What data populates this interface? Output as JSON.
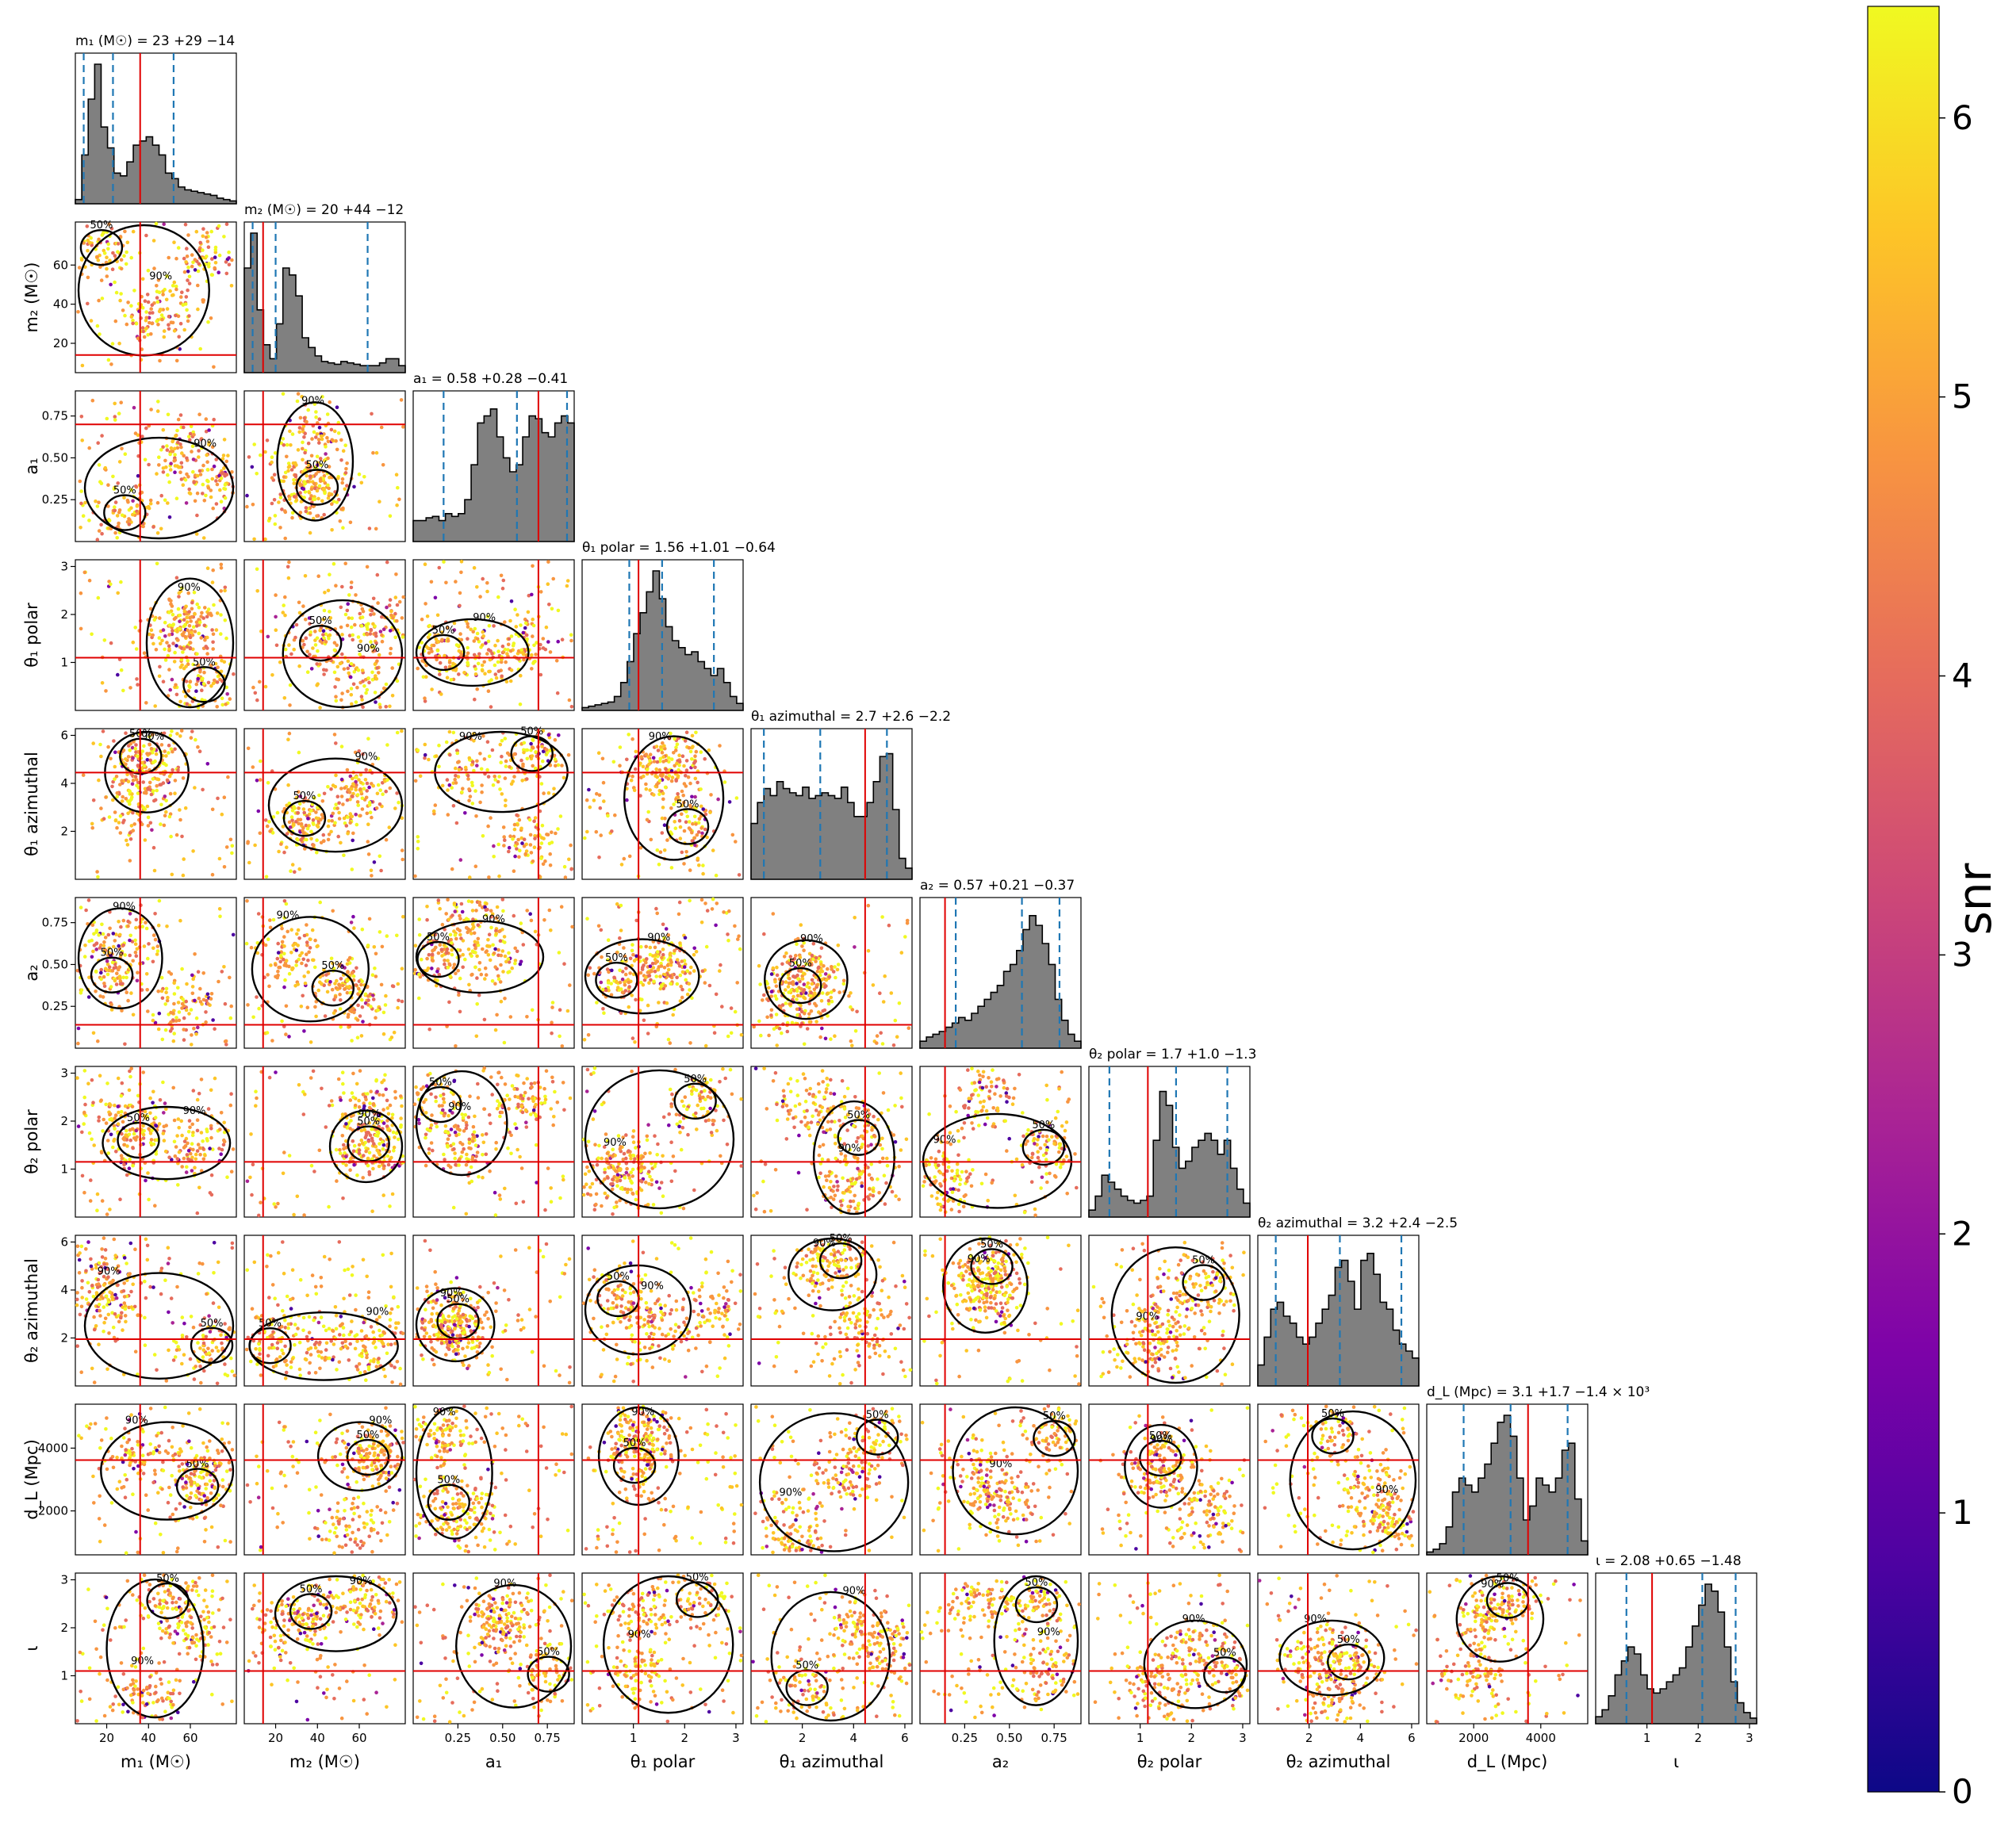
{
  "chart_data": {
    "type": "corner",
    "parameters": [
      {
        "key": "m1",
        "axis_label": "m₁ (M☉)",
        "title": "m₁ (M☉) = 23 +29 −14",
        "median": 23,
        "plus": 29,
        "minus": 14,
        "truth": 36,
        "range": [
          5,
          82
        ],
        "ticks": [
          20,
          40,
          60
        ],
        "hist": [
          0.03,
          0.35,
          0.75,
          1.0,
          0.55,
          0.4,
          0.22,
          0.2,
          0.3,
          0.42,
          0.45,
          0.48,
          0.42,
          0.35,
          0.22,
          0.18,
          0.12,
          0.1,
          0.09,
          0.08,
          0.07,
          0.06,
          0.04,
          0.03,
          0.02
        ],
        "q_lines": [
          9,
          23,
          52
        ]
      },
      {
        "key": "m2",
        "axis_label": "m₂ (M☉)",
        "title": "m₂ (M☉) = 20 +44 −12",
        "median": 20,
        "plus": 44,
        "minus": 12,
        "truth": 14,
        "range": [
          5,
          82
        ],
        "ticks": [
          20,
          40,
          60
        ],
        "hist": [
          0.75,
          1.0,
          0.45,
          0.2,
          0.1,
          0.35,
          0.75,
          0.7,
          0.55,
          0.25,
          0.18,
          0.12,
          0.08,
          0.07,
          0.06,
          0.08,
          0.07,
          0.06,
          0.05,
          0.05,
          0.05,
          0.07,
          0.1,
          0.1,
          0.05
        ],
        "q_lines": [
          9,
          20,
          64
        ]
      },
      {
        "key": "a1",
        "axis_label": "a₁",
        "title": "a₁ = 0.58 +0.28 −0.41",
        "median": 0.58,
        "plus": 0.28,
        "minus": 0.41,
        "truth": 0.7,
        "range": [
          0.0,
          0.9
        ],
        "ticks": [
          0.25,
          0.5,
          0.75
        ],
        "hist": [
          0.15,
          0.15,
          0.17,
          0.18,
          0.15,
          0.2,
          0.18,
          0.2,
          0.3,
          0.55,
          0.85,
          0.9,
          0.95,
          0.75,
          0.6,
          0.5,
          0.55,
          0.75,
          0.9,
          0.88,
          0.78,
          0.75,
          0.85,
          0.9,
          0.85
        ],
        "q_lines": [
          0.17,
          0.58,
          0.86
        ]
      },
      {
        "key": "t1p",
        "axis_label": "θ₁ polar",
        "title": "θ₁ polar = 1.56 +1.01 −0.64",
        "median": 1.56,
        "plus": 1.01,
        "minus": 0.64,
        "truth": 1.1,
        "range": [
          0.0,
          3.14
        ],
        "ticks": [
          1,
          2,
          3
        ],
        "hist": [
          0.02,
          0.03,
          0.04,
          0.05,
          0.06,
          0.1,
          0.2,
          0.35,
          0.55,
          0.7,
          0.85,
          1.0,
          0.8,
          0.6,
          0.5,
          0.45,
          0.4,
          0.42,
          0.35,
          0.3,
          0.25,
          0.3,
          0.2,
          0.1,
          0.05
        ],
        "q_lines": [
          0.92,
          1.56,
          2.57
        ]
      },
      {
        "key": "t1a",
        "axis_label": "θ₁ azimuthal",
        "title": "θ₁ azimuthal = 2.7 +2.6 −2.2",
        "median": 2.7,
        "plus": 2.6,
        "minus": 2.2,
        "truth": 4.45,
        "range": [
          0.0,
          6.28
        ],
        "ticks": [
          2,
          4,
          6
        ],
        "hist": [
          0.4,
          0.55,
          0.65,
          0.6,
          0.7,
          0.65,
          0.62,
          0.6,
          0.66,
          0.58,
          0.6,
          0.62,
          0.6,
          0.58,
          0.66,
          0.55,
          0.45,
          0.45,
          0.55,
          0.7,
          0.88,
          0.9,
          0.5,
          0.15,
          0.08
        ],
        "q_lines": [
          0.5,
          2.7,
          5.3
        ]
      },
      {
        "key": "a2",
        "axis_label": "a₂",
        "title": "a₂ = 0.57 +0.21 −0.37",
        "median": 0.57,
        "plus": 0.21,
        "minus": 0.37,
        "truth": 0.14,
        "range": [
          0.0,
          0.9
        ],
        "ticks": [
          0.25,
          0.5,
          0.75
        ],
        "hist": [
          0.05,
          0.08,
          0.1,
          0.12,
          0.15,
          0.18,
          0.22,
          0.2,
          0.25,
          0.3,
          0.35,
          0.4,
          0.45,
          0.55,
          0.6,
          0.7,
          0.85,
          0.95,
          0.88,
          0.75,
          0.6,
          0.35,
          0.2,
          0.1,
          0.05
        ],
        "q_lines": [
          0.2,
          0.57,
          0.78
        ]
      },
      {
        "key": "t2p",
        "axis_label": "θ₂ polar",
        "title": "θ₂ polar = 1.7 +1.0 −1.3",
        "median": 1.7,
        "plus": 1.0,
        "minus": 1.3,
        "truth": 1.15,
        "range": [
          0.0,
          3.14
        ],
        "ticks": [
          1,
          2,
          3
        ],
        "hist": [
          0.05,
          0.15,
          0.3,
          0.25,
          0.2,
          0.15,
          0.12,
          0.1,
          0.12,
          0.15,
          0.55,
          0.9,
          0.8,
          0.5,
          0.35,
          0.4,
          0.5,
          0.55,
          0.6,
          0.55,
          0.45,
          0.55,
          0.35,
          0.2,
          0.1
        ],
        "q_lines": [
          0.4,
          1.7,
          2.7
        ]
      },
      {
        "key": "t2a",
        "axis_label": "θ₂ azimuthal",
        "title": "θ₂ azimuthal = 3.2 +2.4 −2.5",
        "median": 3.2,
        "plus": 2.4,
        "minus": 2.5,
        "truth": 1.95,
        "range": [
          0.0,
          6.28
        ],
        "ticks": [
          2,
          4,
          6
        ],
        "hist": [
          0.15,
          0.35,
          0.55,
          0.6,
          0.5,
          0.45,
          0.35,
          0.3,
          0.35,
          0.45,
          0.55,
          0.65,
          0.85,
          0.9,
          0.75,
          0.55,
          0.9,
          0.95,
          0.8,
          0.6,
          0.55,
          0.4,
          0.3,
          0.25,
          0.2
        ],
        "q_lines": [
          0.7,
          3.2,
          5.6
        ]
      },
      {
        "key": "dl",
        "axis_label": "d_L (Mpc)",
        "title": "d_L (Mpc) = 3.1 +1.7 −1.4 × 10³",
        "median": 3100,
        "plus": 1700,
        "minus": 1400,
        "truth": 3620,
        "range": [
          600,
          5400
        ],
        "ticks": [
          2000,
          4000
        ],
        "hist": [
          0.02,
          0.04,
          0.08,
          0.2,
          0.45,
          0.55,
          0.5,
          0.45,
          0.55,
          0.65,
          0.8,
          0.95,
          1.0,
          0.85,
          0.55,
          0.25,
          0.35,
          0.55,
          0.5,
          0.45,
          0.55,
          0.75,
          0.8,
          0.4,
          0.1
        ],
        "q_lines": [
          1700,
          3100,
          4800
        ]
      },
      {
        "key": "iota",
        "axis_label": "ι",
        "title": "ι = 2.08 +0.65 −1.48",
        "median": 2.08,
        "plus": 0.65,
        "minus": 1.48,
        "truth": 1.1,
        "range": [
          0.0,
          3.14
        ],
        "ticks": [
          1,
          2,
          3
        ],
        "hist": [
          0.05,
          0.1,
          0.2,
          0.35,
          0.45,
          0.55,
          0.5,
          0.35,
          0.25,
          0.22,
          0.25,
          0.3,
          0.35,
          0.4,
          0.55,
          0.7,
          0.85,
          1.0,
          0.95,
          0.8,
          0.55,
          0.3,
          0.15,
          0.08,
          0.04
        ],
        "q_lines": [
          0.6,
          2.08,
          2.73
        ]
      }
    ],
    "contour_labels": [
      "50%",
      "90%"
    ],
    "colorbar": {
      "label": "snr",
      "min": 0,
      "max": 6.4,
      "ticks": [
        0,
        1,
        2,
        3,
        4,
        5,
        6
      ],
      "colormap": "plasma"
    },
    "colors": {
      "hist_fill": "#808080",
      "quantile_line": "#1f77b4",
      "truth_line": "#e00000",
      "contour": "#000000"
    }
  }
}
